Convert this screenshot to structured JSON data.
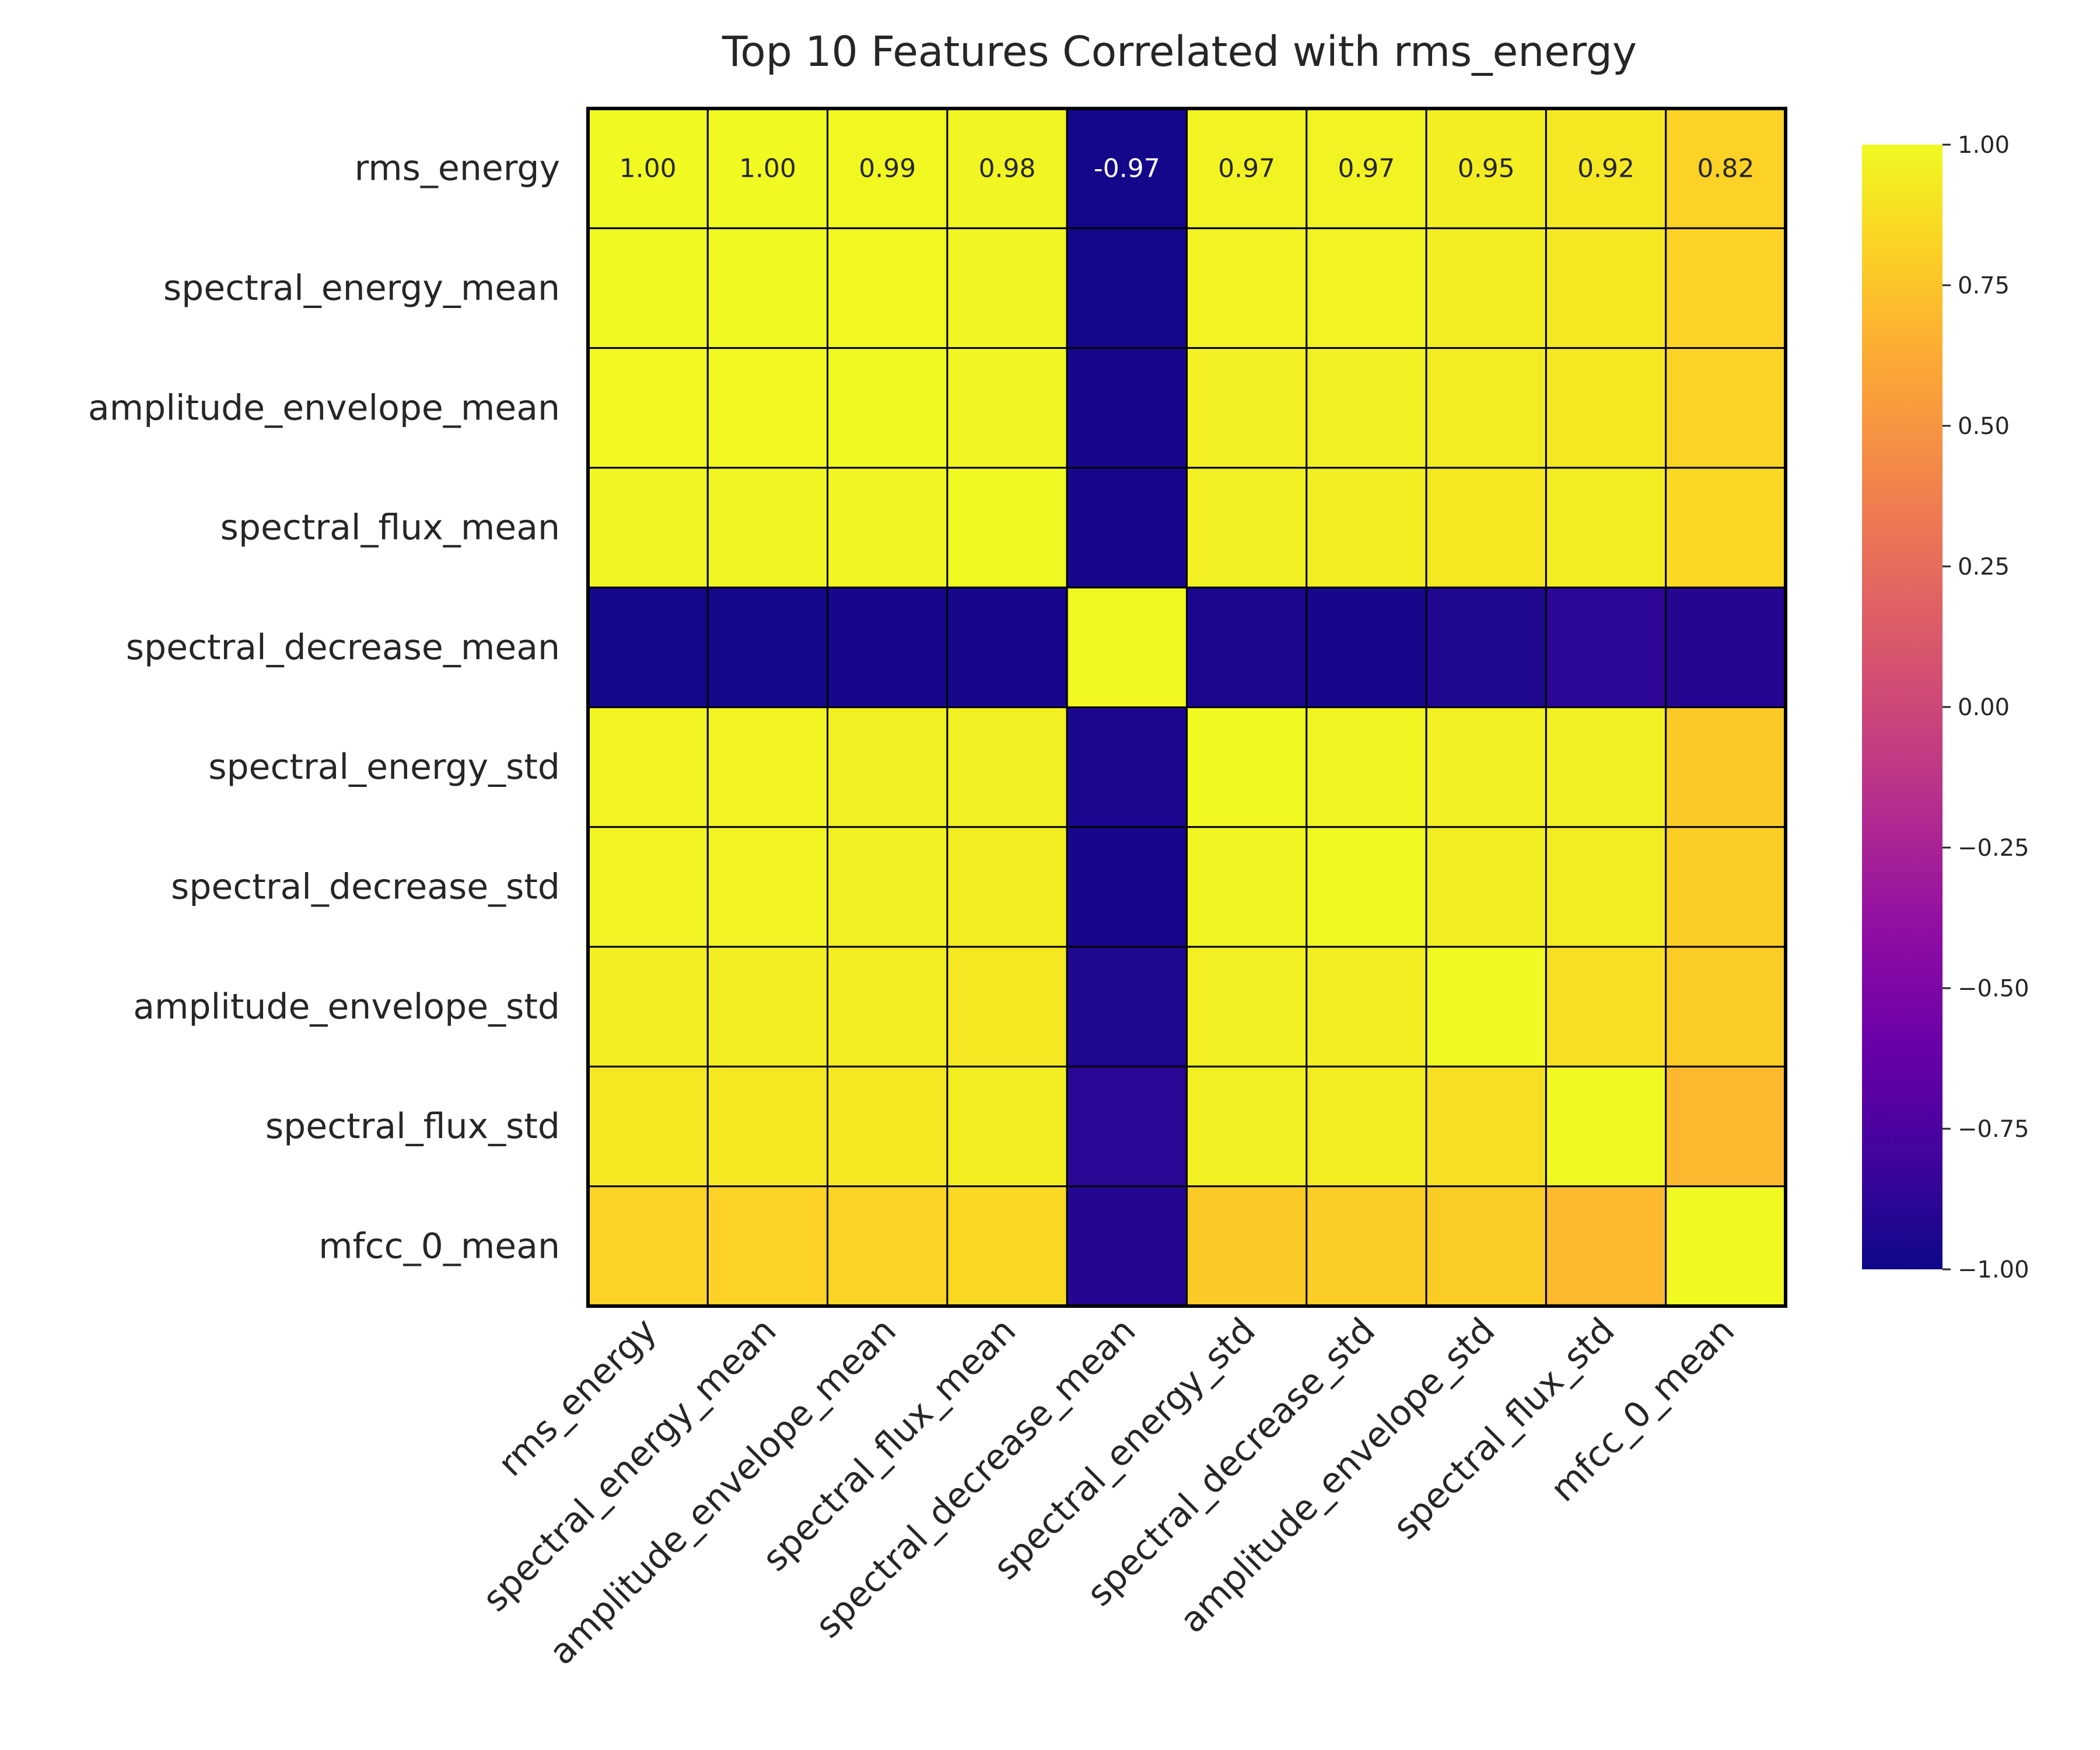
{
  "chart_data": {
    "type": "heatmap",
    "title": "Top 10 Features Correlated with rms_energy",
    "xlabel": "",
    "ylabel": "",
    "labels": [
      "rms_energy",
      "spectral_energy_mean",
      "amplitude_envelope_mean",
      "spectral_flux_mean",
      "spectral_decrease_mean",
      "spectral_energy_std",
      "spectral_decrease_std",
      "amplitude_envelope_std",
      "spectral_flux_std",
      "mfcc_0_mean"
    ],
    "matrix": [
      [
        1.0,
        1.0,
        0.99,
        0.98,
        -0.97,
        0.97,
        0.97,
        0.95,
        0.92,
        0.82
      ],
      [
        1.0,
        1.0,
        0.99,
        0.98,
        -0.97,
        0.97,
        0.97,
        0.95,
        0.92,
        0.82
      ],
      [
        0.99,
        0.99,
        1.0,
        0.98,
        -0.96,
        0.96,
        0.96,
        0.94,
        0.92,
        0.83
      ],
      [
        0.98,
        0.98,
        0.98,
        1.0,
        -0.96,
        0.96,
        0.95,
        0.92,
        0.95,
        0.85
      ],
      [
        -0.97,
        -0.97,
        -0.96,
        -0.96,
        1.0,
        -0.95,
        -0.96,
        -0.93,
        -0.88,
        -0.91
      ],
      [
        0.97,
        0.97,
        0.96,
        0.96,
        -0.95,
        1.0,
        0.98,
        0.96,
        0.96,
        0.78
      ],
      [
        0.97,
        0.97,
        0.96,
        0.95,
        -0.96,
        0.98,
        1.0,
        0.95,
        0.94,
        0.8
      ],
      [
        0.95,
        0.95,
        0.94,
        0.92,
        -0.93,
        0.96,
        0.95,
        1.0,
        0.88,
        0.79
      ],
      [
        0.92,
        0.92,
        0.92,
        0.95,
        -0.88,
        0.96,
        0.94,
        0.88,
        1.0,
        0.69
      ],
      [
        0.82,
        0.82,
        0.83,
        0.85,
        -0.91,
        0.78,
        0.8,
        0.79,
        0.69,
        1.0
      ]
    ],
    "annotated_rows": [
      0
    ],
    "annotation_format": "0.00",
    "colormap": "plasma",
    "vmin": -1.0,
    "vmax": 1.0,
    "colorbar_ticks": [
      "1.00",
      "0.75",
      "0.50",
      "0.25",
      "0.00",
      "−0.25",
      "−0.50",
      "−0.75",
      "−1.00"
    ],
    "colorbar_tick_values": [
      1.0,
      0.75,
      0.5,
      0.25,
      0.0,
      -0.25,
      -0.5,
      -0.75,
      -1.0
    ]
  }
}
